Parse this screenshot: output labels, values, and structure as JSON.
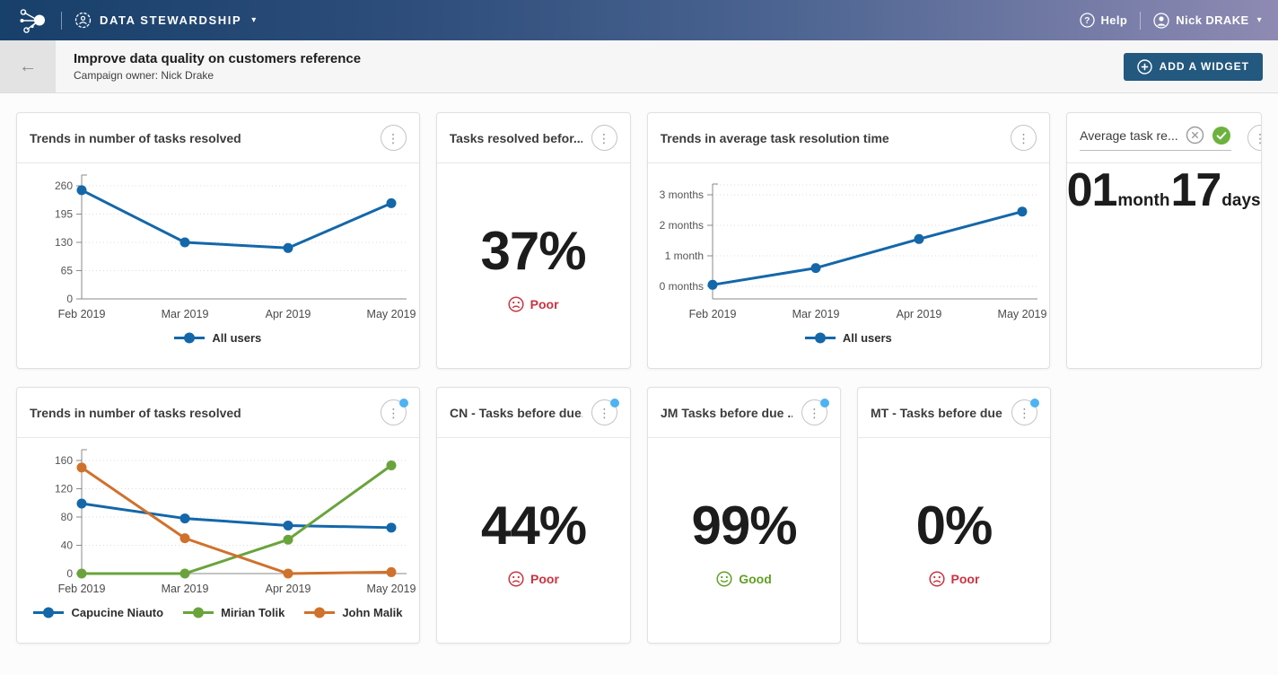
{
  "topbar": {
    "app_name": "DATA STEWARDSHIP",
    "help_label": "Help",
    "user_name": "Nick DRAKE"
  },
  "header": {
    "title": "Improve data quality on customers reference",
    "subtitle": "Campaign owner: Nick Drake",
    "add_widget_label": "ADD A WIDGET"
  },
  "icons": {
    "kebab": "⋮",
    "back_arrow": "←",
    "chevron_down": "▾"
  },
  "colors": {
    "accent_blue": "#1467a9",
    "series_green": "#6aa33c",
    "series_orange": "#d0712c",
    "poor_red": "#ca3340",
    "good_green": "#61a024",
    "notification_dot": "#4db3f2",
    "button_navy": "#23587f"
  },
  "widgets": [
    {
      "title": "Trends in number of tasks resolved",
      "type": "line",
      "chart_index": 0,
      "menu_dot": false
    },
    {
      "title": "Tasks resolved befor...",
      "type": "kpi",
      "value": "37%",
      "rating": {
        "label": "Poor",
        "sentiment": "poor"
      },
      "menu_dot": false
    },
    {
      "title": "Trends in average task resolution time",
      "type": "line",
      "chart_index": 1,
      "menu_dot": false
    },
    {
      "title": "Average task re...",
      "type": "duration",
      "editing": true,
      "value_parts": [
        {
          "num": "01",
          "unit": "month"
        },
        {
          "num": "17",
          "unit": "days"
        }
      ],
      "menu_dot": false
    },
    {
      "title": "Trends in number of tasks resolved",
      "type": "line",
      "chart_index": 2,
      "menu_dot": true
    },
    {
      "title": "CN - Tasks before due...",
      "type": "kpi",
      "value": "44%",
      "rating": {
        "label": "Poor",
        "sentiment": "poor"
      },
      "menu_dot": true
    },
    {
      "title": "JM Tasks before due ...",
      "type": "kpi",
      "value": "99%",
      "rating": {
        "label": "Good",
        "sentiment": "good"
      },
      "menu_dot": true
    },
    {
      "title": "MT - Tasks before due...",
      "type": "kpi",
      "value": "0%",
      "rating": {
        "label": "Poor",
        "sentiment": "poor"
      },
      "menu_dot": true
    }
  ],
  "chart_data": [
    {
      "type": "line",
      "title": "Trends in number of tasks resolved",
      "x": [
        "Feb 2019",
        "Mar 2019",
        "Apr 2019",
        "May 2019"
      ],
      "y_tick_values": [
        0,
        65,
        130,
        195,
        260
      ],
      "y_tick_labels": [
        "0",
        "65",
        "130",
        "195",
        "260"
      ],
      "ylim": [
        0,
        260
      ],
      "grid": true,
      "legend_position": "bottom",
      "series": [
        {
          "name": "All users",
          "color": "#1467a9",
          "values": [
            250,
            130,
            117,
            220
          ]
        }
      ]
    },
    {
      "type": "line",
      "title": "Trends in average task resolution time",
      "x": [
        "Feb 2019",
        "Mar 2019",
        "Apr 2019",
        "May 2019"
      ],
      "y_tick_values": [
        0,
        1,
        2,
        3
      ],
      "y_tick_labels": [
        "0 months",
        "1 month",
        "2 months",
        "3 months"
      ],
      "ylim": [
        0,
        3
      ],
      "grid": true,
      "legend_position": "bottom",
      "series": [
        {
          "name": "All users",
          "color": "#1467a9",
          "values": [
            0.05,
            0.6,
            1.55,
            2.45
          ]
        }
      ]
    },
    {
      "type": "line",
      "title": "Trends in number of tasks resolved",
      "x": [
        "Feb 2019",
        "Mar 2019",
        "Apr 2019",
        "May 2019"
      ],
      "y_tick_values": [
        0,
        40,
        80,
        120,
        160
      ],
      "y_tick_labels": [
        "0",
        "40",
        "80",
        "120",
        "160"
      ],
      "ylim": [
        0,
        160
      ],
      "grid": true,
      "legend_position": "bottom",
      "series": [
        {
          "name": "Capucine Niauto",
          "color": "#1467a9",
          "values": [
            99,
            78,
            68,
            65
          ]
        },
        {
          "name": "Mirian Tolik",
          "color": "#6aa33c",
          "values": [
            0,
            0,
            48,
            153
          ]
        },
        {
          "name": "John Malik",
          "color": "#d0712c",
          "values": [
            150,
            50,
            0,
            2
          ]
        }
      ]
    }
  ]
}
